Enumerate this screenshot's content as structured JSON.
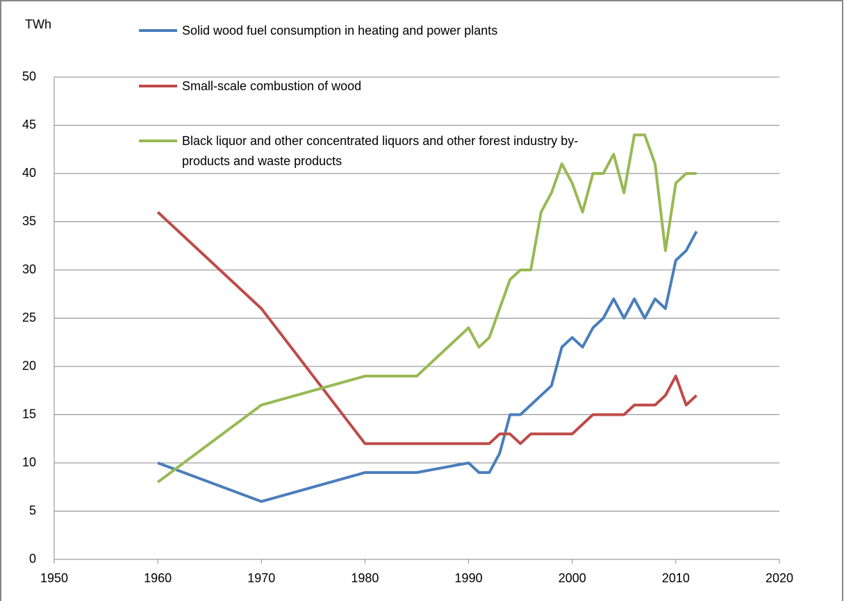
{
  "chart_data": {
    "type": "line",
    "y_label": "TWh",
    "x": [
      1960,
      1970,
      1980,
      1985,
      1990,
      1991,
      1992,
      1993,
      1994,
      1995,
      1996,
      1997,
      1998,
      1999,
      2000,
      2001,
      2002,
      2003,
      2004,
      2005,
      2006,
      2007,
      2008,
      2009,
      2010,
      2011,
      2012
    ],
    "series": [
      {
        "name": "Solid wood fuel consumption in heating and power plants",
        "color": "#4a7ebb",
        "values": [
          10,
          6,
          9,
          9,
          10,
          9,
          9,
          11,
          15,
          15,
          16,
          17,
          18,
          22,
          23,
          22,
          24,
          25,
          27,
          25,
          27,
          25,
          27,
          26,
          31,
          32,
          34
        ]
      },
      {
        "name": "Small-scale combustion of wood",
        "color": "#be4b48",
        "values": [
          36,
          26,
          12,
          12,
          12,
          12,
          12,
          13,
          13,
          12,
          13,
          13,
          13,
          13,
          13,
          14,
          15,
          15,
          15,
          15,
          16,
          16,
          16,
          17,
          19,
          16,
          17
        ]
      },
      {
        "name": "Black liquor and other concentrated liquors and other forest industry by-products and waste products",
        "color": "#98b954",
        "values": [
          8,
          16,
          19,
          19,
          24,
          22,
          23,
          26,
          29,
          30,
          30,
          36,
          38,
          41,
          39,
          36,
          40,
          40,
          42,
          38,
          44,
          44,
          41,
          32,
          39,
          40,
          40
        ]
      }
    ],
    "xlim": [
      1950,
      2020
    ],
    "xticks": [
      1950,
      1960,
      1970,
      1980,
      1990,
      2000,
      2010,
      2020
    ],
    "ylim": [
      0,
      50
    ],
    "yticks": [
      0,
      5,
      10,
      15,
      20,
      25,
      30,
      35,
      40,
      45,
      50
    ],
    "grid": true
  }
}
